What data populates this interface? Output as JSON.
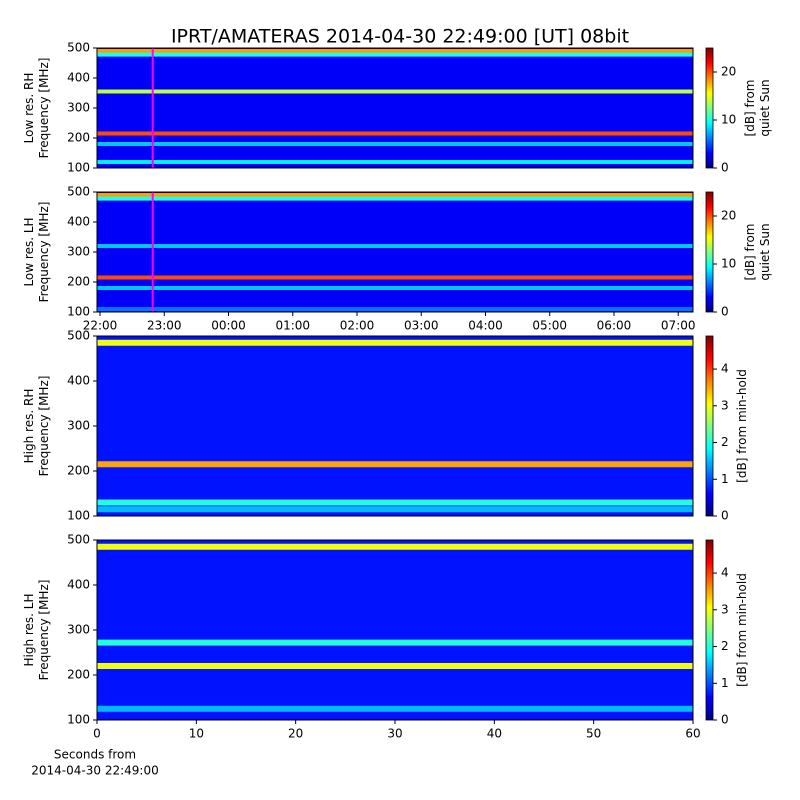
{
  "chart_data": [
    {
      "type": "heatmap",
      "title": "IPRT/AMATERAS 2014-04-30 22:49:00 [UT]   08bit",
      "ylabel": [
        "Low res. RH",
        "Frequency [MHz]"
      ],
      "xlim": [
        21.953,
        31.23
      ],
      "ylim": [
        100,
        500
      ],
      "yticks": [
        100,
        200,
        300,
        400,
        500
      ],
      "colormap": "jet",
      "background": 3,
      "marker": 22.82,
      "marker_color": "#ff00ff",
      "bands": [
        {
          "freq": 490,
          "value": 18
        },
        {
          "freq": 478,
          "value": 10
        },
        {
          "freq": 355,
          "value": 14
        },
        {
          "freq": 215,
          "value": 20
        },
        {
          "freq": 180,
          "value": 8
        },
        {
          "freq": 120,
          "value": 9
        }
      ],
      "clim": [
        0,
        25
      ],
      "cticks": [
        0,
        10,
        20
      ],
      "clabel": [
        "[dB] from",
        "quiet Sun"
      ]
    },
    {
      "type": "heatmap",
      "ylabel": [
        "Low res. LH",
        "Frequency [MHz]"
      ],
      "xlim": [
        21.953,
        31.23
      ],
      "ylim": [
        100,
        500
      ],
      "yticks": [
        100,
        200,
        300,
        400,
        500
      ],
      "xticks": [
        {
          "value": 22,
          "label": "22:00"
        },
        {
          "value": 23,
          "label": "23:00"
        },
        {
          "value": 24,
          "label": "00:00"
        },
        {
          "value": 25,
          "label": "01:00"
        },
        {
          "value": 26,
          "label": "02:00"
        },
        {
          "value": 27,
          "label": "03:00"
        },
        {
          "value": 28,
          "label": "04:00"
        },
        {
          "value": 29,
          "label": "05:00"
        },
        {
          "value": 30,
          "label": "06:00"
        },
        {
          "value": 31,
          "label": "07:00"
        }
      ],
      "colormap": "jet",
      "background": 3,
      "marker": 22.82,
      "marker_color": "#ff00ff",
      "bands": [
        {
          "freq": 490,
          "value": 18
        },
        {
          "freq": 478,
          "value": 10
        },
        {
          "freq": 320,
          "value": 8
        },
        {
          "freq": 215,
          "value": 20
        },
        {
          "freq": 180,
          "value": 8
        },
        {
          "freq": 110,
          "value": 6
        }
      ],
      "clim": [
        0,
        25
      ],
      "cticks": [
        0,
        10,
        20
      ],
      "clabel": [
        "[dB] from",
        "quiet Sun"
      ]
    },
    {
      "type": "heatmap",
      "ylabel": [
        "High res. RH",
        "Frequency [MHz]"
      ],
      "xlim": [
        0,
        60
      ],
      "ylim": [
        100,
        500
      ],
      "yticks": [
        100,
        200,
        300,
        400,
        500
      ],
      "colormap": "jet",
      "background": 0.7,
      "bands": [
        {
          "freq": 485,
          "value": 3
        },
        {
          "freq": 215,
          "value": 3.5
        },
        {
          "freq": 130,
          "value": 2
        },
        {
          "freq": 115,
          "value": 1.5
        }
      ],
      "clim": [
        0,
        4.9
      ],
      "cticks": [
        0,
        1,
        2,
        3,
        4
      ],
      "clabel": [
        "[dB] from min-hold"
      ]
    },
    {
      "type": "heatmap",
      "ylabel": [
        "High res. LH",
        "Frequency [MHz]"
      ],
      "xlim": [
        0,
        60
      ],
      "ylim": [
        100,
        500
      ],
      "yticks": [
        100,
        200,
        300,
        400,
        500
      ],
      "xticks": [
        0,
        10,
        20,
        30,
        40,
        50,
        60
      ],
      "xlabel": [
        "Seconds from",
        "2014-04-30 22:49:00"
      ],
      "colormap": "jet",
      "background": 0.7,
      "bands": [
        {
          "freq": 485,
          "value": 3
        },
        {
          "freq": 272,
          "value": 2
        },
        {
          "freq": 220,
          "value": 3
        },
        {
          "freq": 125,
          "value": 1.5
        }
      ],
      "clim": [
        0,
        4.9
      ],
      "cticks": [
        0,
        1,
        2,
        3,
        4
      ],
      "clabel": [
        "[dB] from min-hold"
      ]
    }
  ]
}
